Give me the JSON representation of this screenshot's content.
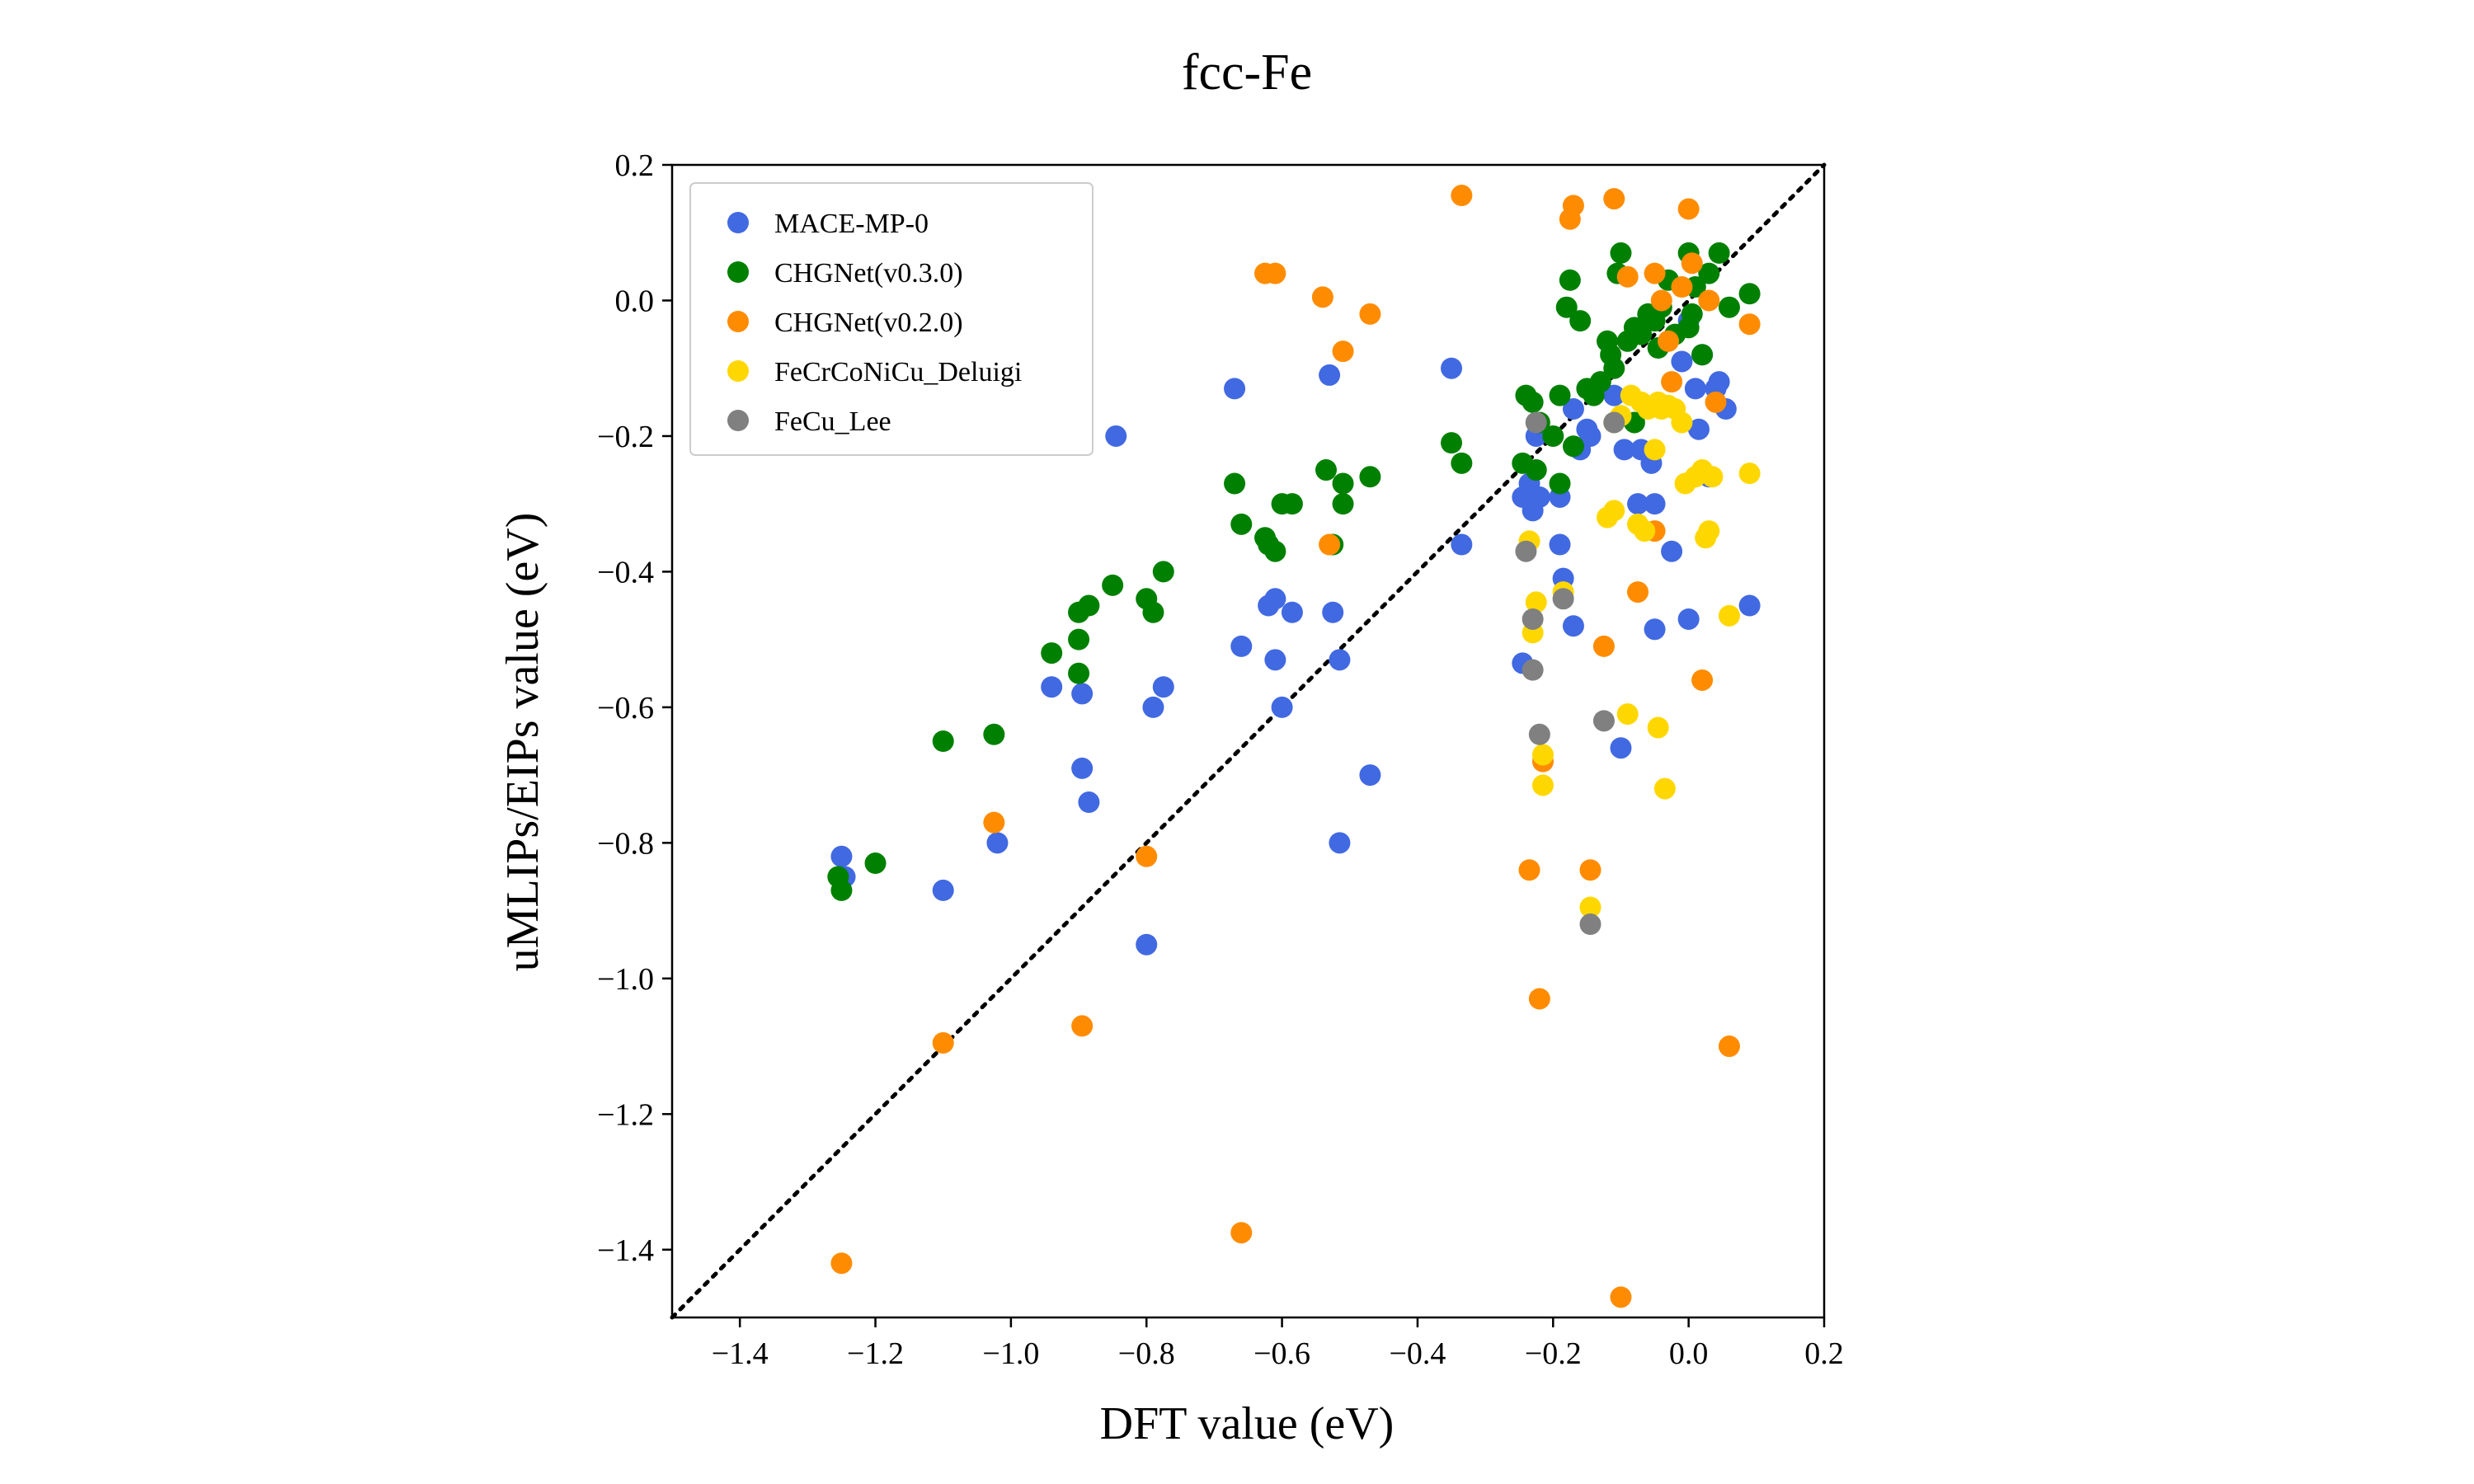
{
  "chart_data": {
    "type": "scatter",
    "title": "fcc-Fe",
    "xlabel": "DFT value (eV)",
    "ylabel": "uMLIPs/EIPs value (eV)",
    "xlim": [
      -1.5,
      0.2
    ],
    "ylim": [
      -1.5,
      0.2
    ],
    "xticks": [
      -1.4,
      -1.2,
      -1.0,
      -0.8,
      -0.6,
      -0.4,
      -0.2,
      0.0,
      0.2
    ],
    "yticks": [
      -1.4,
      -1.2,
      -1.0,
      -0.8,
      -0.6,
      -0.4,
      -0.2,
      0.0,
      0.2
    ],
    "x_tick_labels": [
      "−1.4",
      "−1.2",
      "−1.0",
      "−0.8",
      "−0.6",
      "−0.4",
      "−0.2",
      "0.0",
      "0.2"
    ],
    "y_tick_labels": [
      "−1.4",
      "−1.2",
      "−1.0",
      "−0.8",
      "−0.6",
      "−0.4",
      "−0.2",
      "0.0",
      "0.2"
    ],
    "grid": false,
    "legend_position": "top-left",
    "reference_line": "dotted y = x",
    "series": [
      {
        "name": "MACE-MP-0",
        "color": "#4169e1",
        "points": [
          [
            -1.25,
            -0.82
          ],
          [
            -1.245,
            -0.85
          ],
          [
            -1.1,
            -0.87
          ],
          [
            -1.02,
            -0.8
          ],
          [
            -0.94,
            -0.57
          ],
          [
            -0.895,
            -0.58
          ],
          [
            -0.895,
            -0.69
          ],
          [
            -0.885,
            -0.74
          ],
          [
            -0.845,
            -0.2
          ],
          [
            -0.79,
            -0.6
          ],
          [
            -0.775,
            -0.57
          ],
          [
            -0.8,
            -0.95
          ],
          [
            -0.67,
            -0.13
          ],
          [
            -0.66,
            -0.51
          ],
          [
            -0.62,
            -0.45
          ],
          [
            -0.61,
            -0.44
          ],
          [
            -0.61,
            -0.53
          ],
          [
            -0.6,
            -0.6
          ],
          [
            -0.585,
            -0.46
          ],
          [
            -0.53,
            -0.11
          ],
          [
            -0.525,
            -0.46
          ],
          [
            -0.515,
            -0.53
          ],
          [
            -0.515,
            -0.8
          ],
          [
            -0.47,
            -0.7
          ],
          [
            -0.35,
            -0.1
          ],
          [
            -0.335,
            -0.36
          ],
          [
            -0.245,
            -0.29
          ],
          [
            -0.245,
            -0.535
          ],
          [
            -0.235,
            -0.27
          ],
          [
            -0.235,
            -0.28
          ],
          [
            -0.23,
            -0.31
          ],
          [
            -0.225,
            -0.2
          ],
          [
            -0.22,
            -0.29
          ],
          [
            -0.19,
            -0.36
          ],
          [
            -0.19,
            -0.29
          ],
          [
            -0.185,
            -0.41
          ],
          [
            -0.17,
            -0.48
          ],
          [
            -0.17,
            -0.16
          ],
          [
            -0.16,
            -0.22
          ],
          [
            -0.15,
            -0.19
          ],
          [
            -0.145,
            -0.2
          ],
          [
            -0.11,
            -0.14
          ],
          [
            -0.1,
            -0.66
          ],
          [
            -0.095,
            -0.22
          ],
          [
            -0.075,
            -0.3
          ],
          [
            -0.07,
            -0.22
          ],
          [
            -0.055,
            -0.24
          ],
          [
            -0.05,
            -0.3
          ],
          [
            -0.05,
            -0.485
          ],
          [
            -0.025,
            -0.37
          ],
          [
            -0.01,
            -0.09
          ],
          [
            0.0,
            -0.47
          ],
          [
            0.0,
            -0.03
          ],
          [
            0.01,
            -0.13
          ],
          [
            0.015,
            -0.19
          ],
          [
            0.02,
            -0.08
          ],
          [
            0.03,
            -0.26
          ],
          [
            0.04,
            -0.13
          ],
          [
            0.045,
            -0.12
          ],
          [
            0.055,
            -0.16
          ],
          [
            0.09,
            -0.45
          ]
        ]
      },
      {
        "name": "CHGNet(v0.3.0)",
        "color": "#008000",
        "points": [
          [
            -1.255,
            -0.85
          ],
          [
            -1.25,
            -0.87
          ],
          [
            -1.2,
            -0.83
          ],
          [
            -1.1,
            -0.65
          ],
          [
            -1.025,
            -0.64
          ],
          [
            -0.94,
            -0.52
          ],
          [
            -0.9,
            -0.5
          ],
          [
            -0.9,
            -0.46
          ],
          [
            -0.9,
            -0.55
          ],
          [
            -0.885,
            -0.45
          ],
          [
            -0.85,
            -0.42
          ],
          [
            -0.8,
            -0.44
          ],
          [
            -0.79,
            -0.46
          ],
          [
            -0.775,
            -0.4
          ],
          [
            -0.67,
            -0.27
          ],
          [
            -0.66,
            -0.33
          ],
          [
            -0.625,
            -0.35
          ],
          [
            -0.62,
            -0.36
          ],
          [
            -0.61,
            -0.37
          ],
          [
            -0.6,
            -0.3
          ],
          [
            -0.585,
            -0.3
          ],
          [
            -0.535,
            -0.25
          ],
          [
            -0.525,
            -0.36
          ],
          [
            -0.51,
            -0.27
          ],
          [
            -0.51,
            -0.3
          ],
          [
            -0.47,
            -0.26
          ],
          [
            -0.35,
            -0.21
          ],
          [
            -0.335,
            -0.24
          ],
          [
            -0.245,
            -0.24
          ],
          [
            -0.24,
            -0.14
          ],
          [
            -0.23,
            -0.15
          ],
          [
            -0.225,
            -0.25
          ],
          [
            -0.22,
            -0.18
          ],
          [
            -0.2,
            -0.2
          ],
          [
            -0.19,
            -0.27
          ],
          [
            -0.19,
            -0.14
          ],
          [
            -0.18,
            -0.01
          ],
          [
            -0.175,
            0.03
          ],
          [
            -0.17,
            -0.215
          ],
          [
            -0.16,
            -0.03
          ],
          [
            -0.15,
            -0.13
          ],
          [
            -0.14,
            -0.14
          ],
          [
            -0.13,
            -0.12
          ],
          [
            -0.12,
            -0.06
          ],
          [
            -0.115,
            -0.08
          ],
          [
            -0.11,
            -0.1
          ],
          [
            -0.105,
            0.04
          ],
          [
            -0.1,
            0.07
          ],
          [
            -0.09,
            -0.06
          ],
          [
            -0.08,
            -0.04
          ],
          [
            -0.08,
            -0.18
          ],
          [
            -0.07,
            -0.05
          ],
          [
            -0.06,
            -0.02
          ],
          [
            -0.05,
            -0.03
          ],
          [
            -0.045,
            -0.07
          ],
          [
            -0.04,
            -0.01
          ],
          [
            -0.03,
            0.03
          ],
          [
            -0.02,
            -0.05
          ],
          [
            0.0,
            -0.04
          ],
          [
            0.0,
            0.07
          ],
          [
            0.005,
            -0.02
          ],
          [
            0.01,
            0.02
          ],
          [
            0.02,
            -0.08
          ],
          [
            0.03,
            0.04
          ],
          [
            0.045,
            0.07
          ],
          [
            0.06,
            -0.01
          ],
          [
            0.09,
            0.01
          ]
        ]
      },
      {
        "name": "CHGNet(v0.2.0)",
        "color": "#ff8c00",
        "points": [
          [
            -1.25,
            -1.42
          ],
          [
            -1.1,
            -1.095
          ],
          [
            -1.025,
            -0.77
          ],
          [
            -0.895,
            -1.07
          ],
          [
            -0.8,
            -0.82
          ],
          [
            -0.66,
            -1.375
          ],
          [
            -0.625,
            0.04
          ],
          [
            -0.61,
            0.04
          ],
          [
            -0.54,
            0.005
          ],
          [
            -0.51,
            -0.075
          ],
          [
            -0.47,
            -0.02
          ],
          [
            -0.53,
            -0.36
          ],
          [
            -0.335,
            0.155
          ],
          [
            -0.235,
            -0.84
          ],
          [
            -0.22,
            -1.03
          ],
          [
            -0.215,
            -0.68
          ],
          [
            -0.175,
            0.12
          ],
          [
            -0.17,
            0.14
          ],
          [
            -0.145,
            -0.84
          ],
          [
            -0.125,
            -0.51
          ],
          [
            -0.11,
            0.15
          ],
          [
            -0.1,
            -1.47
          ],
          [
            -0.09,
            0.035
          ],
          [
            -0.075,
            -0.43
          ],
          [
            -0.05,
            0.04
          ],
          [
            -0.05,
            -0.34
          ],
          [
            -0.04,
            0.0
          ],
          [
            -0.03,
            -0.06
          ],
          [
            -0.025,
            -0.12
          ],
          [
            -0.01,
            0.02
          ],
          [
            0.0,
            0.135
          ],
          [
            0.005,
            0.055
          ],
          [
            0.02,
            -0.56
          ],
          [
            0.03,
            0.0
          ],
          [
            0.04,
            -0.15
          ],
          [
            0.06,
            -1.1
          ],
          [
            0.09,
            -0.035
          ]
        ]
      },
      {
        "name": "FeCrCoNiCu_Deluigi",
        "color": "#ffd700",
        "points": [
          [
            -0.235,
            -0.355
          ],
          [
            -0.23,
            -0.49
          ],
          [
            -0.225,
            -0.445
          ],
          [
            -0.215,
            -0.715
          ],
          [
            -0.215,
            -0.67
          ],
          [
            -0.185,
            -0.43
          ],
          [
            -0.145,
            -0.895
          ],
          [
            -0.12,
            -0.32
          ],
          [
            -0.11,
            -0.31
          ],
          [
            -0.11,
            -0.18
          ],
          [
            -0.1,
            -0.17
          ],
          [
            -0.09,
            -0.61
          ],
          [
            -0.085,
            -0.14
          ],
          [
            -0.075,
            -0.33
          ],
          [
            -0.07,
            -0.15
          ],
          [
            -0.065,
            -0.34
          ],
          [
            -0.06,
            -0.16
          ],
          [
            -0.05,
            -0.22
          ],
          [
            -0.045,
            -0.15
          ],
          [
            -0.045,
            -0.63
          ],
          [
            -0.04,
            -0.16
          ],
          [
            -0.035,
            -0.72
          ],
          [
            -0.03,
            -0.155
          ],
          [
            -0.02,
            -0.16
          ],
          [
            -0.01,
            -0.18
          ],
          [
            -0.005,
            -0.27
          ],
          [
            0.01,
            -0.26
          ],
          [
            0.02,
            -0.25
          ],
          [
            0.025,
            -0.35
          ],
          [
            0.03,
            -0.34
          ],
          [
            0.035,
            -0.26
          ],
          [
            0.06,
            -0.465
          ],
          [
            0.09,
            -0.255
          ]
        ]
      },
      {
        "name": "FeCu_Lee",
        "color": "#808080",
        "points": [
          [
            -0.24,
            -0.37
          ],
          [
            -0.23,
            -0.545
          ],
          [
            -0.23,
            -0.47
          ],
          [
            -0.22,
            -0.64
          ],
          [
            -0.225,
            -0.18
          ],
          [
            -0.185,
            -0.44
          ],
          [
            -0.145,
            -0.92
          ],
          [
            -0.125,
            -0.62
          ],
          [
            -0.11,
            -0.18
          ]
        ]
      }
    ]
  }
}
